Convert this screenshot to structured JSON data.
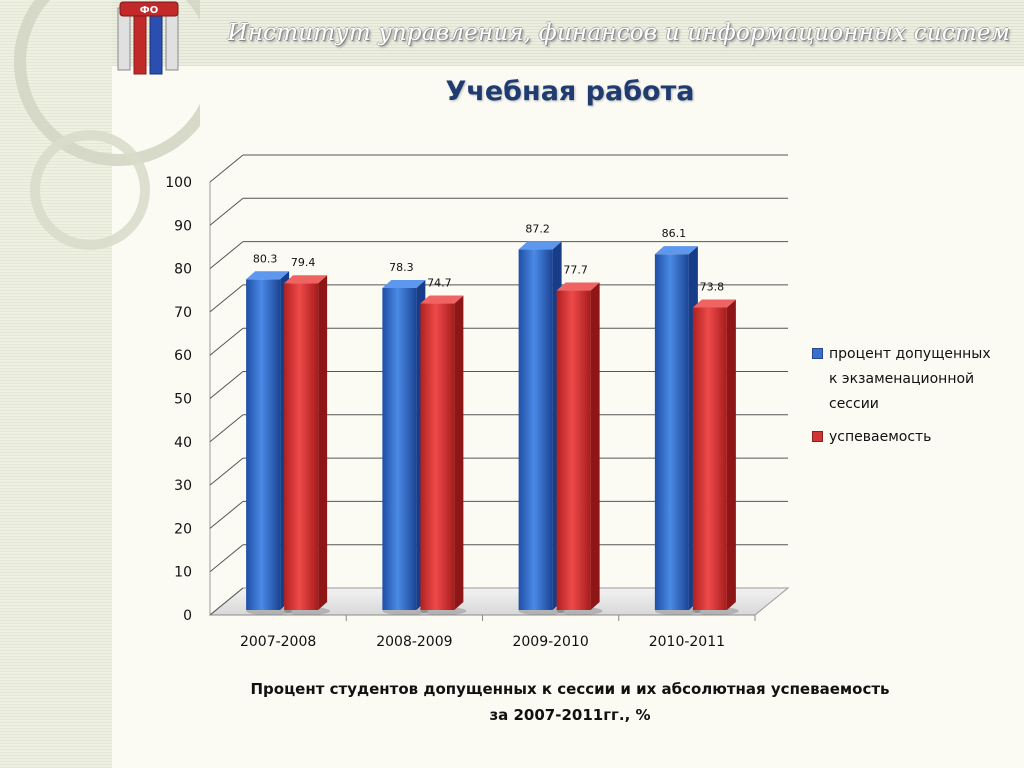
{
  "header": {
    "institute": "Институт управления, финансов и информационных систем",
    "title": "Учебная работа"
  },
  "logo": {
    "letters": "ФО"
  },
  "caption": {
    "line1": "Процент студентов допущенных к сессии и их абсолютная успеваемость",
    "line2": "за 2007-2011гг., %"
  },
  "chart_data": {
    "type": "bar",
    "categories": [
      "2007-2008",
      "2008-2009",
      "2009-2010",
      "2010-2011"
    ],
    "series": [
      {
        "name": "процент допущенных к экзаменационной сессии",
        "values": [
          80.3,
          78.3,
          87.2,
          86.1
        ],
        "color": "#2f62c4"
      },
      {
        "name": "успеваемость",
        "values": [
          79.4,
          74.7,
          77.7,
          73.8
        ],
        "color": "#d23434"
      }
    ],
    "yticks": [
      "0",
      "10",
      "20",
      "30",
      "40",
      "50",
      "60",
      "70",
      "80",
      "90",
      "100"
    ],
    "ylim": [
      0,
      100
    ],
    "grid": true,
    "legend": "right",
    "style": "3d-cylinder"
  }
}
